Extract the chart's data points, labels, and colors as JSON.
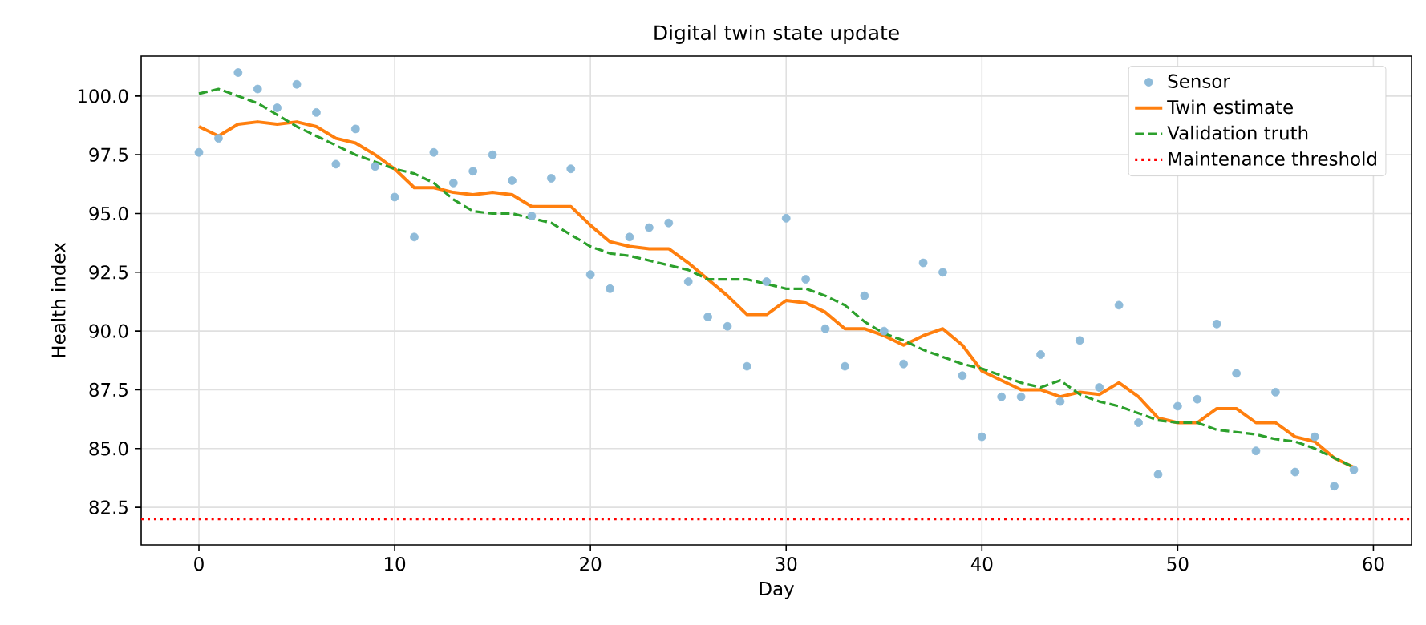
{
  "chart_data": {
    "type": "line",
    "title": "Digital twin state update",
    "xlabel": "Day",
    "ylabel": "Health index",
    "x": [
      0,
      1,
      2,
      3,
      4,
      5,
      6,
      7,
      8,
      9,
      10,
      11,
      12,
      13,
      14,
      15,
      16,
      17,
      18,
      19,
      20,
      21,
      22,
      23,
      24,
      25,
      26,
      27,
      28,
      29,
      30,
      31,
      32,
      33,
      34,
      35,
      36,
      37,
      38,
      39,
      40,
      41,
      42,
      43,
      44,
      45,
      46,
      47,
      48,
      49,
      50,
      51,
      52,
      53,
      54,
      55,
      56,
      57,
      58,
      59
    ],
    "series": [
      {
        "name": "Sensor",
        "type": "scatter",
        "color": "#8fbbd9",
        "values": [
          97.6,
          98.2,
          101.0,
          100.3,
          99.5,
          100.5,
          99.3,
          97.1,
          98.6,
          97.0,
          95.7,
          94.0,
          97.6,
          96.3,
          96.8,
          97.5,
          96.4,
          94.9,
          96.5,
          96.9,
          92.4,
          91.8,
          94.0,
          94.4,
          94.6,
          92.1,
          90.6,
          90.2,
          88.5,
          92.1,
          94.8,
          92.2,
          90.1,
          88.5,
          91.5,
          90.0,
          88.6,
          92.9,
          92.5,
          88.1,
          85.5,
          87.2,
          87.2,
          89.0,
          87.0,
          89.6,
          87.6,
          91.1,
          86.1,
          83.9,
          86.8,
          87.1,
          90.3,
          88.2,
          84.9,
          87.4,
          84.0,
          85.5,
          83.4,
          84.1
        ]
      },
      {
        "name": "Twin estimate",
        "line_style": "solid",
        "color": "#ff7f0e",
        "values": [
          98.7,
          98.3,
          98.8,
          98.9,
          98.8,
          98.9,
          98.7,
          98.2,
          98.0,
          97.5,
          96.9,
          96.1,
          96.1,
          95.9,
          95.8,
          95.9,
          95.8,
          95.3,
          95.3,
          95.3,
          94.5,
          93.8,
          93.6,
          93.5,
          93.5,
          92.9,
          92.2,
          91.5,
          90.7,
          90.7,
          91.3,
          91.2,
          90.8,
          90.1,
          90.1,
          89.8,
          89.4,
          89.8,
          90.1,
          89.4,
          88.3,
          87.9,
          87.5,
          87.5,
          87.2,
          87.4,
          87.3,
          87.8,
          87.2,
          86.3,
          86.1,
          86.1,
          86.7,
          86.7,
          86.1,
          86.1,
          85.5,
          85.3,
          84.6,
          84.2
        ]
      },
      {
        "name": "Validation truth",
        "line_style": "dashed",
        "color": "#2ca02c",
        "values": [
          100.1,
          100.3,
          100.0,
          99.7,
          99.2,
          98.7,
          98.3,
          97.9,
          97.5,
          97.2,
          96.9,
          96.7,
          96.3,
          95.6,
          95.1,
          95.0,
          95.0,
          94.8,
          94.6,
          94.1,
          93.6,
          93.3,
          93.2,
          93.0,
          92.8,
          92.6,
          92.2,
          92.2,
          92.2,
          92.0,
          91.8,
          91.8,
          91.5,
          91.1,
          90.4,
          89.9,
          89.6,
          89.2,
          88.9,
          88.6,
          88.4,
          88.1,
          87.8,
          87.6,
          87.9,
          87.3,
          87.0,
          86.8,
          86.5,
          86.2,
          86.1,
          86.1,
          85.8,
          85.7,
          85.6,
          85.4,
          85.3,
          85.0,
          84.6,
          84.2
        ]
      }
    ],
    "ref_lines": [
      {
        "axis": "y",
        "value": 82.0,
        "label": "Maintenance threshold",
        "color": "#ff0000",
        "line_style": "dotted"
      }
    ],
    "xlim": [
      -2.95,
      61.95
    ],
    "ylim": [
      80.9,
      101.7
    ],
    "xticks": [
      0,
      10,
      20,
      30,
      40,
      50,
      60
    ],
    "yticks": [
      {
        "value": 82.5,
        "label": "82.5"
      },
      {
        "value": 85,
        "label": "85.0"
      },
      {
        "value": 87.5,
        "label": "87.5"
      },
      {
        "value": 90,
        "label": "90.0"
      },
      {
        "value": 92.5,
        "label": "92.5"
      },
      {
        "value": 95,
        "label": "95.0"
      },
      {
        "value": 97.5,
        "label": "97.5"
      },
      {
        "value": 100,
        "label": "100.0"
      }
    ],
    "grid": true,
    "legend": "top right"
  }
}
